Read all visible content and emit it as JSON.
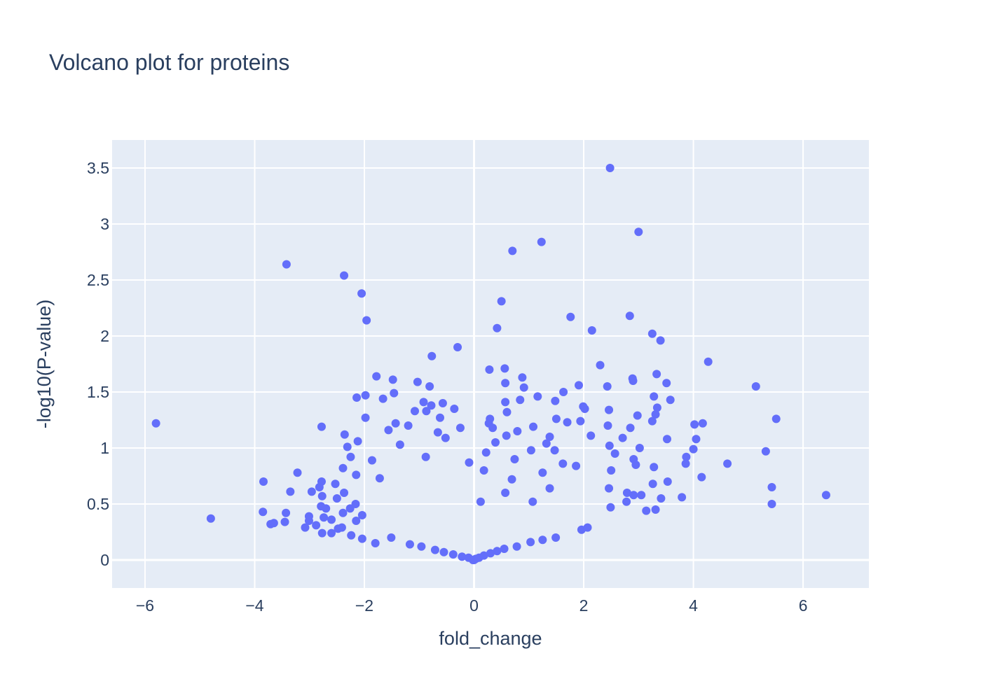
{
  "chart_data": {
    "type": "scatter",
    "title": "Volcano plot for proteins",
    "xlabel": "fold_change",
    "ylabel": "-log10(P-value)",
    "xlim": [
      -6.6,
      7.2
    ],
    "ylim": [
      -0.25,
      3.75
    ],
    "xticks": [
      -6,
      -4,
      -2,
      0,
      2,
      4,
      6
    ],
    "xtick_labels": [
      "−6",
      "−4",
      "−2",
      "0",
      "2",
      "4",
      "6"
    ],
    "yticks": [
      0,
      0.5,
      1,
      1.5,
      2,
      2.5,
      3,
      3.5
    ],
    "ytick_labels": [
      "0",
      "0.5",
      "1",
      "1.5",
      "2",
      "2.5",
      "3",
      "3.5"
    ],
    "grid": true,
    "colors": {
      "plot_bg": "#e5ecf6",
      "grid": "#ffffff",
      "marker": "#636efa",
      "text": "#2a3f5f"
    },
    "points": [
      [
        2.48,
        3.5
      ],
      [
        3.0,
        2.93
      ],
      [
        1.23,
        2.84
      ],
      [
        0.7,
        2.76
      ],
      [
        -3.42,
        2.64
      ],
      [
        -2.37,
        2.54
      ],
      [
        -2.05,
        2.38
      ],
      [
        0.5,
        2.31
      ],
      [
        1.76,
        2.17
      ],
      [
        2.84,
        2.18
      ],
      [
        -1.96,
        2.14
      ],
      [
        0.42,
        2.07
      ],
      [
        2.15,
        2.05
      ],
      [
        3.25,
        2.02
      ],
      [
        3.4,
        1.96
      ],
      [
        -0.3,
        1.9
      ],
      [
        -0.77,
        1.82
      ],
      [
        4.27,
        1.77
      ],
      [
        2.3,
        1.74
      ],
      [
        0.56,
        1.71
      ],
      [
        0.28,
        1.7
      ],
      [
        3.33,
        1.66
      ],
      [
        -1.78,
        1.64
      ],
      [
        0.88,
        1.63
      ],
      [
        -1.48,
        1.61
      ],
      [
        2.89,
        1.62
      ],
      [
        2.9,
        1.6
      ],
      [
        -1.03,
        1.59
      ],
      [
        0.57,
        1.58
      ],
      [
        3.51,
        1.58
      ],
      [
        1.91,
        1.56
      ],
      [
        -0.81,
        1.55
      ],
      [
        2.43,
        1.55
      ],
      [
        5.14,
        1.55
      ],
      [
        0.91,
        1.54
      ],
      [
        1.63,
        1.5
      ],
      [
        -1.46,
        1.49
      ],
      [
        -1.98,
        1.47
      ],
      [
        -2.14,
        1.45
      ],
      [
        3.28,
        1.46
      ],
      [
        -1.66,
        1.44
      ],
      [
        0.84,
        1.43
      ],
      [
        1.16,
        1.46
      ],
      [
        3.58,
        1.43
      ],
      [
        1.48,
        1.42
      ],
      [
        0.57,
        1.41
      ],
      [
        -0.92,
        1.41
      ],
      [
        -0.57,
        1.4
      ],
      [
        -0.78,
        1.38
      ],
      [
        1.99,
        1.37
      ],
      [
        3.34,
        1.36
      ],
      [
        -0.36,
        1.35
      ],
      [
        2.02,
        1.35
      ],
      [
        2.46,
        1.34
      ],
      [
        -1.08,
        1.33
      ],
      [
        -0.87,
        1.33
      ],
      [
        0.6,
        1.32
      ],
      [
        3.31,
        1.3
      ],
      [
        2.98,
        1.29
      ],
      [
        -0.62,
        1.27
      ],
      [
        5.51,
        1.26
      ],
      [
        -1.98,
        1.27
      ],
      [
        0.29,
        1.26
      ],
      [
        1.5,
        1.26
      ],
      [
        3.25,
        1.24
      ],
      [
        0.27,
        1.22
      ],
      [
        -1.43,
        1.22
      ],
      [
        1.94,
        1.24
      ],
      [
        1.7,
        1.23
      ],
      [
        4.02,
        1.21
      ],
      [
        4.17,
        1.22
      ],
      [
        -5.8,
        1.22
      ],
      [
        2.44,
        1.2
      ],
      [
        -1.2,
        1.2
      ],
      [
        -0.25,
        1.18
      ],
      [
        1.08,
        1.19
      ],
      [
        -2.78,
        1.19
      ],
      [
        0.34,
        1.18
      ],
      [
        2.85,
        1.18
      ],
      [
        -1.56,
        1.16
      ],
      [
        0.79,
        1.15
      ],
      [
        -0.66,
        1.14
      ],
      [
        2.13,
        1.11
      ],
      [
        0.59,
        1.11
      ],
      [
        1.38,
        1.1
      ],
      [
        2.71,
        1.09
      ],
      [
        3.52,
        1.08
      ],
      [
        -2.36,
        1.12
      ],
      [
        4.05,
        1.08
      ],
      [
        -0.52,
        1.09
      ],
      [
        -2.12,
        1.06
      ],
      [
        1.32,
        1.04
      ],
      [
        0.39,
        1.05
      ],
      [
        -1.35,
        1.03
      ],
      [
        2.47,
        1.02
      ],
      [
        -2.31,
        1.01
      ],
      [
        3.02,
        1.0
      ],
      [
        4.0,
        0.99
      ],
      [
        1.04,
        0.98
      ],
      [
        5.32,
        0.97
      ],
      [
        1.47,
        0.98
      ],
      [
        0.22,
        0.96
      ],
      [
        2.57,
        0.95
      ],
      [
        3.87,
        0.92
      ],
      [
        2.91,
        0.9
      ],
      [
        -0.88,
        0.92
      ],
      [
        -2.25,
        0.92
      ],
      [
        0.74,
        0.9
      ],
      [
        -1.86,
        0.89
      ],
      [
        1.62,
        0.86
      ],
      [
        2.95,
        0.85
      ],
      [
        4.62,
        0.86
      ],
      [
        3.86,
        0.86
      ],
      [
        -0.09,
        0.87
      ],
      [
        1.86,
        0.84
      ],
      [
        -2.39,
        0.82
      ],
      [
        3.28,
        0.83
      ],
      [
        0.18,
        0.8
      ],
      [
        -3.22,
        0.78
      ],
      [
        1.25,
        0.78
      ],
      [
        2.5,
        0.8
      ],
      [
        -2.15,
        0.76
      ],
      [
        4.15,
        0.74
      ],
      [
        -1.72,
        0.73
      ],
      [
        0.69,
        0.72
      ],
      [
        -2.78,
        0.7
      ],
      [
        -3.84,
        0.7
      ],
      [
        3.53,
        0.7
      ],
      [
        3.26,
        0.68
      ],
      [
        -2.53,
        0.68
      ],
      [
        -2.82,
        0.65
      ],
      [
        5.43,
        0.65
      ],
      [
        1.38,
        0.64
      ],
      [
        2.46,
        0.64
      ],
      [
        -2.96,
        0.61
      ],
      [
        -3.35,
        0.61
      ],
      [
        2.79,
        0.6
      ],
      [
        -2.37,
        0.6
      ],
      [
        0.57,
        0.6
      ],
      [
        6.42,
        0.58
      ],
      [
        3.05,
        0.58
      ],
      [
        2.91,
        0.58
      ],
      [
        -2.77,
        0.57
      ],
      [
        3.79,
        0.56
      ],
      [
        3.41,
        0.55
      ],
      [
        -2.5,
        0.55
      ],
      [
        0.12,
        0.52
      ],
      [
        1.07,
        0.52
      ],
      [
        2.78,
        0.52
      ],
      [
        5.43,
        0.5
      ],
      [
        -2.16,
        0.5
      ],
      [
        -2.79,
        0.48
      ],
      [
        -2.26,
        0.46
      ],
      [
        2.49,
        0.47
      ],
      [
        -2.7,
        0.46
      ],
      [
        3.31,
        0.45
      ],
      [
        -3.85,
        0.43
      ],
      [
        3.14,
        0.44
      ],
      [
        -3.43,
        0.42
      ],
      [
        -2.39,
        0.42
      ],
      [
        -2.04,
        0.4
      ],
      [
        -3.01,
        0.39
      ],
      [
        -4.8,
        0.37
      ],
      [
        -2.74,
        0.38
      ],
      [
        -3.01,
        0.35
      ],
      [
        -2.6,
        0.36
      ],
      [
        -2.15,
        0.35
      ],
      [
        -3.45,
        0.34
      ],
      [
        -3.71,
        0.32
      ],
      [
        -3.65,
        0.33
      ],
      [
        -2.88,
        0.31
      ],
      [
        -2.41,
        0.29
      ],
      [
        -3.08,
        0.29
      ],
      [
        -2.48,
        0.28
      ],
      [
        1.96,
        0.27
      ],
      [
        2.07,
        0.29
      ],
      [
        -2.77,
        0.24
      ],
      [
        -2.6,
        0.24
      ],
      [
        -2.24,
        0.22
      ],
      [
        1.49,
        0.2
      ],
      [
        -2.04,
        0.19
      ],
      [
        1.25,
        0.18
      ],
      [
        -1.8,
        0.15
      ],
      [
        -1.51,
        0.2
      ],
      [
        1.03,
        0.16
      ],
      [
        -1.17,
        0.14
      ],
      [
        -0.96,
        0.12
      ],
      [
        0.78,
        0.12
      ],
      [
        0.55,
        0.1
      ],
      [
        -0.71,
        0.09
      ],
      [
        0.42,
        0.08
      ],
      [
        -0.55,
        0.07
      ],
      [
        0.3,
        0.06
      ],
      [
        -0.38,
        0.05
      ],
      [
        0.18,
        0.04
      ],
      [
        -0.22,
        0.03
      ],
      [
        0.09,
        0.02
      ],
      [
        -0.1,
        0.02
      ],
      [
        0.03,
        0.01
      ],
      [
        -0.02,
        0.0
      ],
      [
        0.0,
        0.0
      ]
    ]
  }
}
